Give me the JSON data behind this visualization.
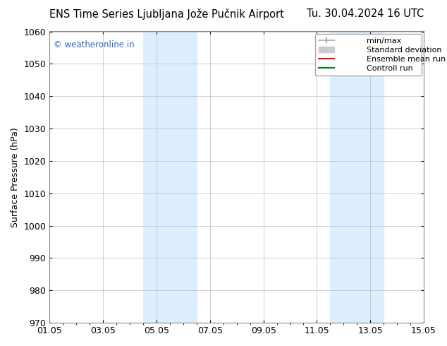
{
  "title_left": "ENS Time Series Ljubljana Jože Pučnik Airport",
  "title_right": "Tu. 30.04.2024 16 UTC",
  "ylabel": "Surface Pressure (hPa)",
  "xlim_start": 0,
  "xlim_end": 14,
  "ylim": [
    970,
    1060
  ],
  "yticks": [
    970,
    980,
    990,
    1000,
    1010,
    1020,
    1030,
    1040,
    1050,
    1060
  ],
  "xtick_labels": [
    "01.05",
    "03.05",
    "05.05",
    "07.05",
    "09.05",
    "11.05",
    "13.05",
    "15.05"
  ],
  "xtick_positions": [
    0,
    2,
    4,
    6,
    8,
    10,
    12,
    14
  ],
  "shaded_bands": [
    {
      "xmin": 3.5,
      "xmax": 5.5,
      "color": "#ddeeff"
    },
    {
      "xmin": 10.5,
      "xmax": 12.5,
      "color": "#ddeeff"
    }
  ],
  "watermark_text": "© weatheronline.in",
  "watermark_color": "#3366cc",
  "background_color": "#ffffff",
  "grid_color": "#bbbbbb",
  "title_fontsize": 10.5,
  "axis_fontsize": 9,
  "tick_fontsize": 9,
  "legend_fontsize": 8
}
